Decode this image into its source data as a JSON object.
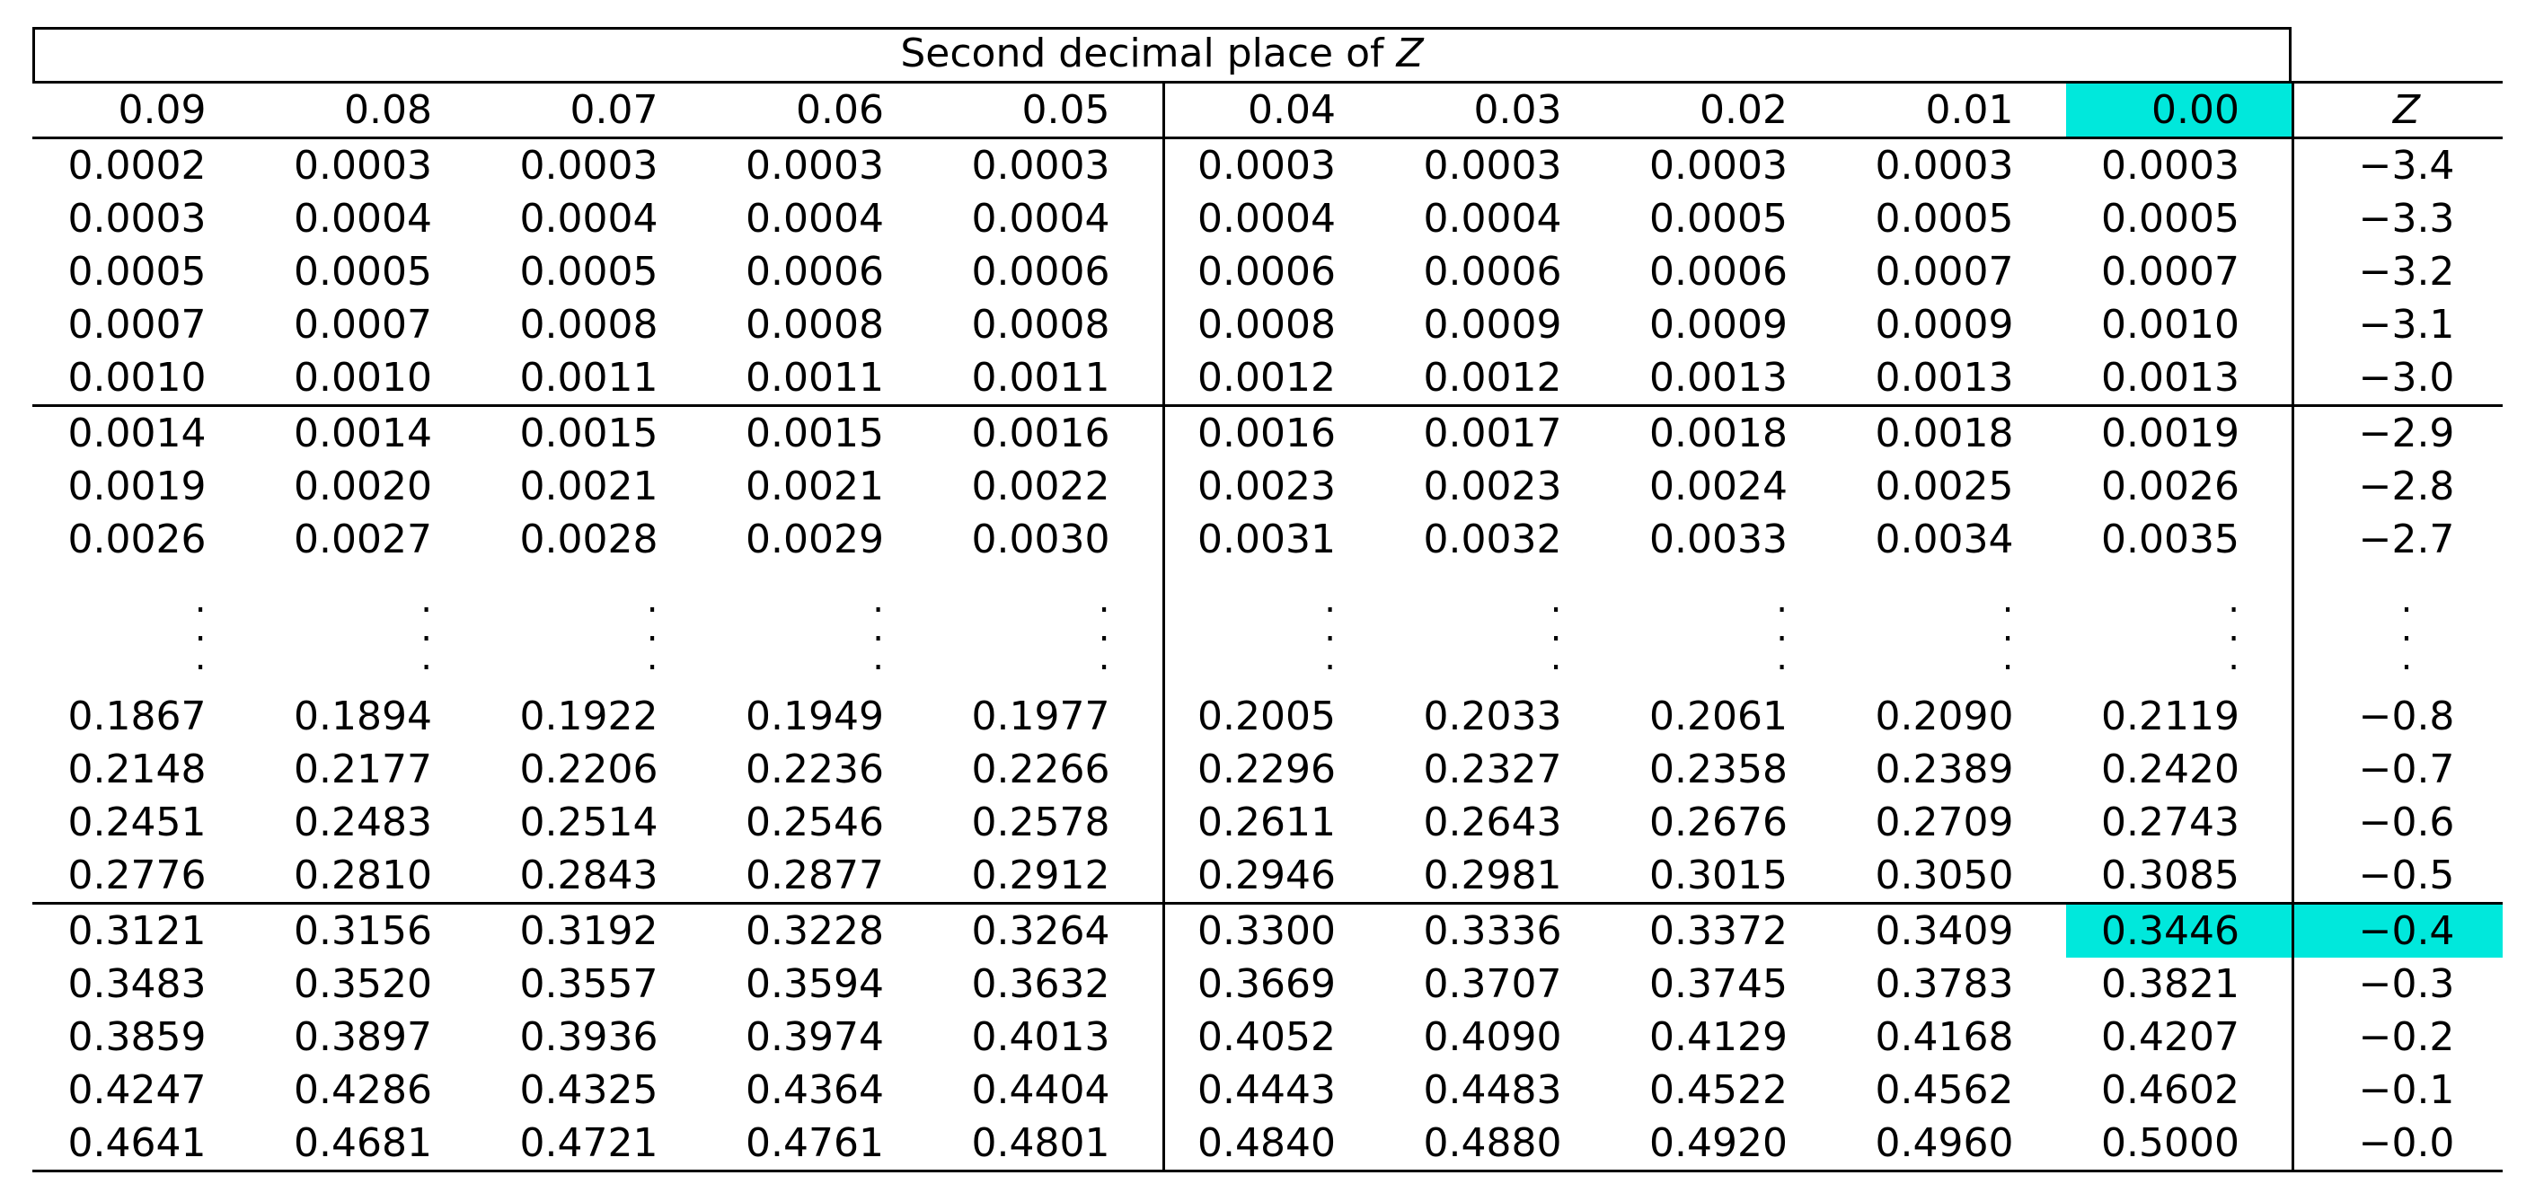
{
  "title": {
    "text": "Second decimal place of ",
    "z": "Z"
  },
  "columns": [
    "0.09",
    "0.08",
    "0.07",
    "0.06",
    "0.05",
    "0.04",
    "0.03",
    "0.02",
    "0.01",
    "0.00"
  ],
  "z_header": "Z",
  "highlight_color": "#00e8dc",
  "highlight": {
    "column": "0.00",
    "row": "−0.4"
  },
  "ellipsis": ".",
  "rows_top": [
    {
      "z": "−3.4",
      "values": [
        "0.0002",
        "0.0003",
        "0.0003",
        "0.0003",
        "0.0003",
        "0.0003",
        "0.0003",
        "0.0003",
        "0.0003",
        "0.0003"
      ]
    },
    {
      "z": "−3.3",
      "values": [
        "0.0003",
        "0.0004",
        "0.0004",
        "0.0004",
        "0.0004",
        "0.0004",
        "0.0004",
        "0.0005",
        "0.0005",
        "0.0005"
      ]
    },
    {
      "z": "−3.2",
      "values": [
        "0.0005",
        "0.0005",
        "0.0005",
        "0.0006",
        "0.0006",
        "0.0006",
        "0.0006",
        "0.0006",
        "0.0007",
        "0.0007"
      ]
    },
    {
      "z": "−3.1",
      "values": [
        "0.0007",
        "0.0007",
        "0.0008",
        "0.0008",
        "0.0008",
        "0.0008",
        "0.0009",
        "0.0009",
        "0.0009",
        "0.0010"
      ]
    },
    {
      "z": "−3.0",
      "values": [
        "0.0010",
        "0.0010",
        "0.0011",
        "0.0011",
        "0.0011",
        "0.0012",
        "0.0012",
        "0.0013",
        "0.0013",
        "0.0013"
      ]
    },
    {
      "z": "−2.9",
      "values": [
        "0.0014",
        "0.0014",
        "0.0015",
        "0.0015",
        "0.0016",
        "0.0016",
        "0.0017",
        "0.0018",
        "0.0018",
        "0.0019"
      ]
    },
    {
      "z": "−2.8",
      "values": [
        "0.0019",
        "0.0020",
        "0.0021",
        "0.0021",
        "0.0022",
        "0.0023",
        "0.0023",
        "0.0024",
        "0.0025",
        "0.0026"
      ]
    },
    {
      "z": "−2.7",
      "values": [
        "0.0026",
        "0.0027",
        "0.0028",
        "0.0029",
        "0.0030",
        "0.0031",
        "0.0032",
        "0.0033",
        "0.0034",
        "0.0035"
      ]
    }
  ],
  "rows_bottom": [
    {
      "z": "−0.8",
      "values": [
        "0.1867",
        "0.1894",
        "0.1922",
        "0.1949",
        "0.1977",
        "0.2005",
        "0.2033",
        "0.2061",
        "0.2090",
        "0.2119"
      ]
    },
    {
      "z": "−0.7",
      "values": [
        "0.2148",
        "0.2177",
        "0.2206",
        "0.2236",
        "0.2266",
        "0.2296",
        "0.2327",
        "0.2358",
        "0.2389",
        "0.2420"
      ]
    },
    {
      "z": "−0.6",
      "values": [
        "0.2451",
        "0.2483",
        "0.2514",
        "0.2546",
        "0.2578",
        "0.2611",
        "0.2643",
        "0.2676",
        "0.2709",
        "0.2743"
      ]
    },
    {
      "z": "−0.5",
      "values": [
        "0.2776",
        "0.2810",
        "0.2843",
        "0.2877",
        "0.2912",
        "0.2946",
        "0.2981",
        "0.3015",
        "0.3050",
        "0.3085"
      ]
    },
    {
      "z": "−0.4",
      "values": [
        "0.3121",
        "0.3156",
        "0.3192",
        "0.3228",
        "0.3264",
        "0.3300",
        "0.3336",
        "0.3372",
        "0.3409",
        "0.3446"
      ]
    },
    {
      "z": "−0.3",
      "values": [
        "0.3483",
        "0.3520",
        "0.3557",
        "0.3594",
        "0.3632",
        "0.3669",
        "0.3707",
        "0.3745",
        "0.3783",
        "0.3821"
      ]
    },
    {
      "z": "−0.2",
      "values": [
        "0.3859",
        "0.3897",
        "0.3936",
        "0.3974",
        "0.4013",
        "0.4052",
        "0.4090",
        "0.4129",
        "0.4168",
        "0.4207"
      ]
    },
    {
      "z": "−0.1",
      "values": [
        "0.4247",
        "0.4286",
        "0.4325",
        "0.4364",
        "0.4404",
        "0.4443",
        "0.4483",
        "0.4522",
        "0.4562",
        "0.4602"
      ]
    },
    {
      "z": "−0.0",
      "values": [
        "0.4641",
        "0.4681",
        "0.4721",
        "0.4761",
        "0.4801",
        "0.4840",
        "0.4880",
        "0.4920",
        "0.4960",
        "0.5000"
      ]
    }
  ]
}
